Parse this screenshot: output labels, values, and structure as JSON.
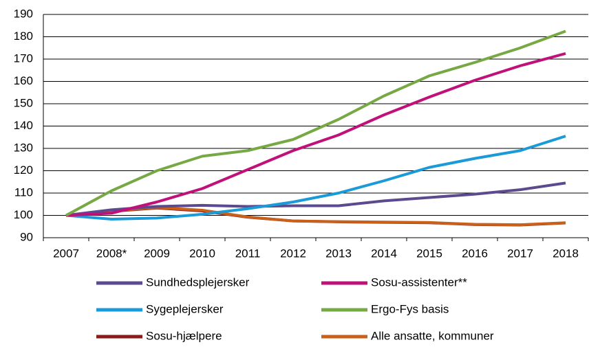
{
  "chart_data": {
    "type": "line",
    "categories": [
      "2007",
      "2008*",
      "2009",
      "2010",
      "2011",
      "2012",
      "2013",
      "2014",
      "2015",
      "2016",
      "2017",
      "2018"
    ],
    "series": [
      {
        "name": "Sundhedsplejersker",
        "color": "#5b4a8e",
        "values": [
          100,
          102.5,
          104,
          104.5,
          104,
          104.3,
          104.3,
          106.5,
          108,
          109.5,
          111.5,
          114.5
        ]
      },
      {
        "name": "Sosu-assistenter**",
        "color": "#c0117a",
        "values": [
          100,
          101,
          106,
          112,
          120.5,
          129,
          136,
          145,
          153,
          160.5,
          167,
          172.5
        ]
      },
      {
        "name": "Sygeplejersker",
        "color": "#1a9ad6",
        "values": [
          100,
          98.3,
          98.8,
          100.5,
          103,
          106,
          110,
          115.5,
          121.5,
          125.5,
          129,
          135.5
        ]
      },
      {
        "name": "Ergo-Fys basis",
        "color": "#76a843",
        "values": [
          100,
          111,
          120,
          126.5,
          129,
          134,
          143,
          153.5,
          162.5,
          168.5,
          175,
          182.5
        ]
      },
      {
        "name": "Sosu-hjælpere",
        "color": "#8b1a1a",
        "values": [
          100,
          101.8,
          103.3,
          102,
          99.2,
          97.5,
          97.1,
          96.9,
          96.7,
          95.9,
          95.7,
          96.6
        ]
      },
      {
        "name": "Alle ansatte, kommuner",
        "color": "#c8601a",
        "values": [
          100,
          102,
          103.5,
          102.3,
          99.3,
          97.5,
          97.2,
          97,
          96.8,
          96,
          95.8,
          96.7
        ]
      }
    ],
    "ylim": [
      90,
      190
    ],
    "yticks": [
      90,
      100,
      110,
      120,
      130,
      140,
      150,
      160,
      170,
      180,
      190
    ],
    "grid": true
  }
}
